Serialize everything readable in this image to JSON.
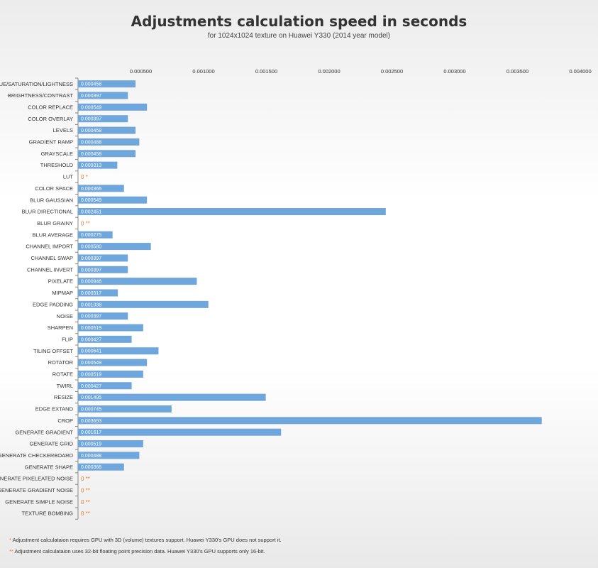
{
  "chart_data": {
    "type": "bar",
    "orientation": "horizontal",
    "title": "Adjustments calculation speed in seconds",
    "subtitle": "for 1024x1024 texture on Huawei Y330 (2014 year model)",
    "xlim": [
      0,
      0.004
    ],
    "x_ticks": [
      "0.000500",
      "0.001000",
      "0.001500",
      "0.002000",
      "0.002500",
      "0.003000",
      "0.003500",
      "0.004000"
    ],
    "x_tick_values": [
      0.0005,
      0.001,
      0.0015,
      0.002,
      0.0025,
      0.003,
      0.0035,
      0.004
    ],
    "grid": false,
    "bar_color": "#6fa6dc",
    "note_color": "#e07b2a",
    "categories": [
      "HUE/SATURATION/LIGHTNESS",
      "BRIGHTNESS/CONTRAST",
      "COLOR REPLACE",
      "COLOR OVERLAY",
      "LEVELS",
      "GRADIENT RAMP",
      "GRAYSCALE",
      "THRESHOLD",
      "LUT",
      "COLOR SPACE",
      "BLUR GAUSSIAN",
      "BLUR DIRECTIONAL",
      "BLUR GRAINY",
      "BLUR AVERAGE",
      "CHANNEL IMPORT",
      "CHANNEL SWAP",
      "CHANNEL INVERT",
      "PIXELATE",
      "MIPMAP",
      "EDGE PADDING",
      "NOISE",
      "SHARPEN",
      "FLIP",
      "TILING OFFSET",
      "ROTATOR",
      "ROTATE",
      "TWIRL",
      "RESIZE",
      "EDGE EXTAND",
      "CROP",
      "GENERATE GRADIENT",
      "GENERATE GRID",
      "GENERATE CHECKERBOARD",
      "GENERATE SHAPE",
      "GENERATE PIXELEATED NOISE",
      "GENERATE GRADIENT NOISE",
      "GENERATE SIMPLE NOISE",
      "TEXTURE BOMBING"
    ],
    "values": [
      0.000458,
      0.000397,
      0.000549,
      0.000397,
      0.000458,
      0.000488,
      0.000458,
      0.000313,
      0,
      0.000366,
      0.000549,
      0.002451,
      0,
      0.000275,
      0.00058,
      0.000397,
      0.000397,
      0.000946,
      0.000317,
      0.001038,
      0.000397,
      0.000519,
      0.000427,
      0.000641,
      0.000549,
      0.000519,
      0.000427,
      0.001495,
      0.000745,
      0.003693,
      0.001617,
      0.000519,
      0.000488,
      0.000366,
      0,
      0,
      0,
      0
    ],
    "value_labels": [
      "0.000458",
      "0.000397",
      "0.000549",
      "0.000397",
      "0.000458",
      "0.000488",
      "0.000458",
      "0.000313",
      "0 *",
      "0.000366",
      "0.000549",
      "0.002451",
      "0 **",
      "0.000275",
      "0.000580",
      "0.000397",
      "0.000397",
      "0.000946",
      "0.000317",
      "0.001038",
      "0.000397",
      "0.000519",
      "0.000427",
      "0.000641",
      "0.000549",
      "0.000519",
      "0.000427",
      "0.001495",
      "0.000745",
      "0.003693",
      "0.001617",
      "0.000519",
      "0.000488",
      "0.000366",
      "0 **",
      "0 **",
      "0 **",
      "0 **"
    ]
  },
  "footnotes": [
    {
      "mark": "*",
      "text": "Adjustment calculataion requires GPU with 3D (volume) textures support. Huawei Y330's GPU does not support it."
    },
    {
      "mark": "**",
      "text": "Adjustment calculataion uses 32-bit floating point precision data.  Huawei Y330's GPU supports only 16-bit."
    }
  ]
}
